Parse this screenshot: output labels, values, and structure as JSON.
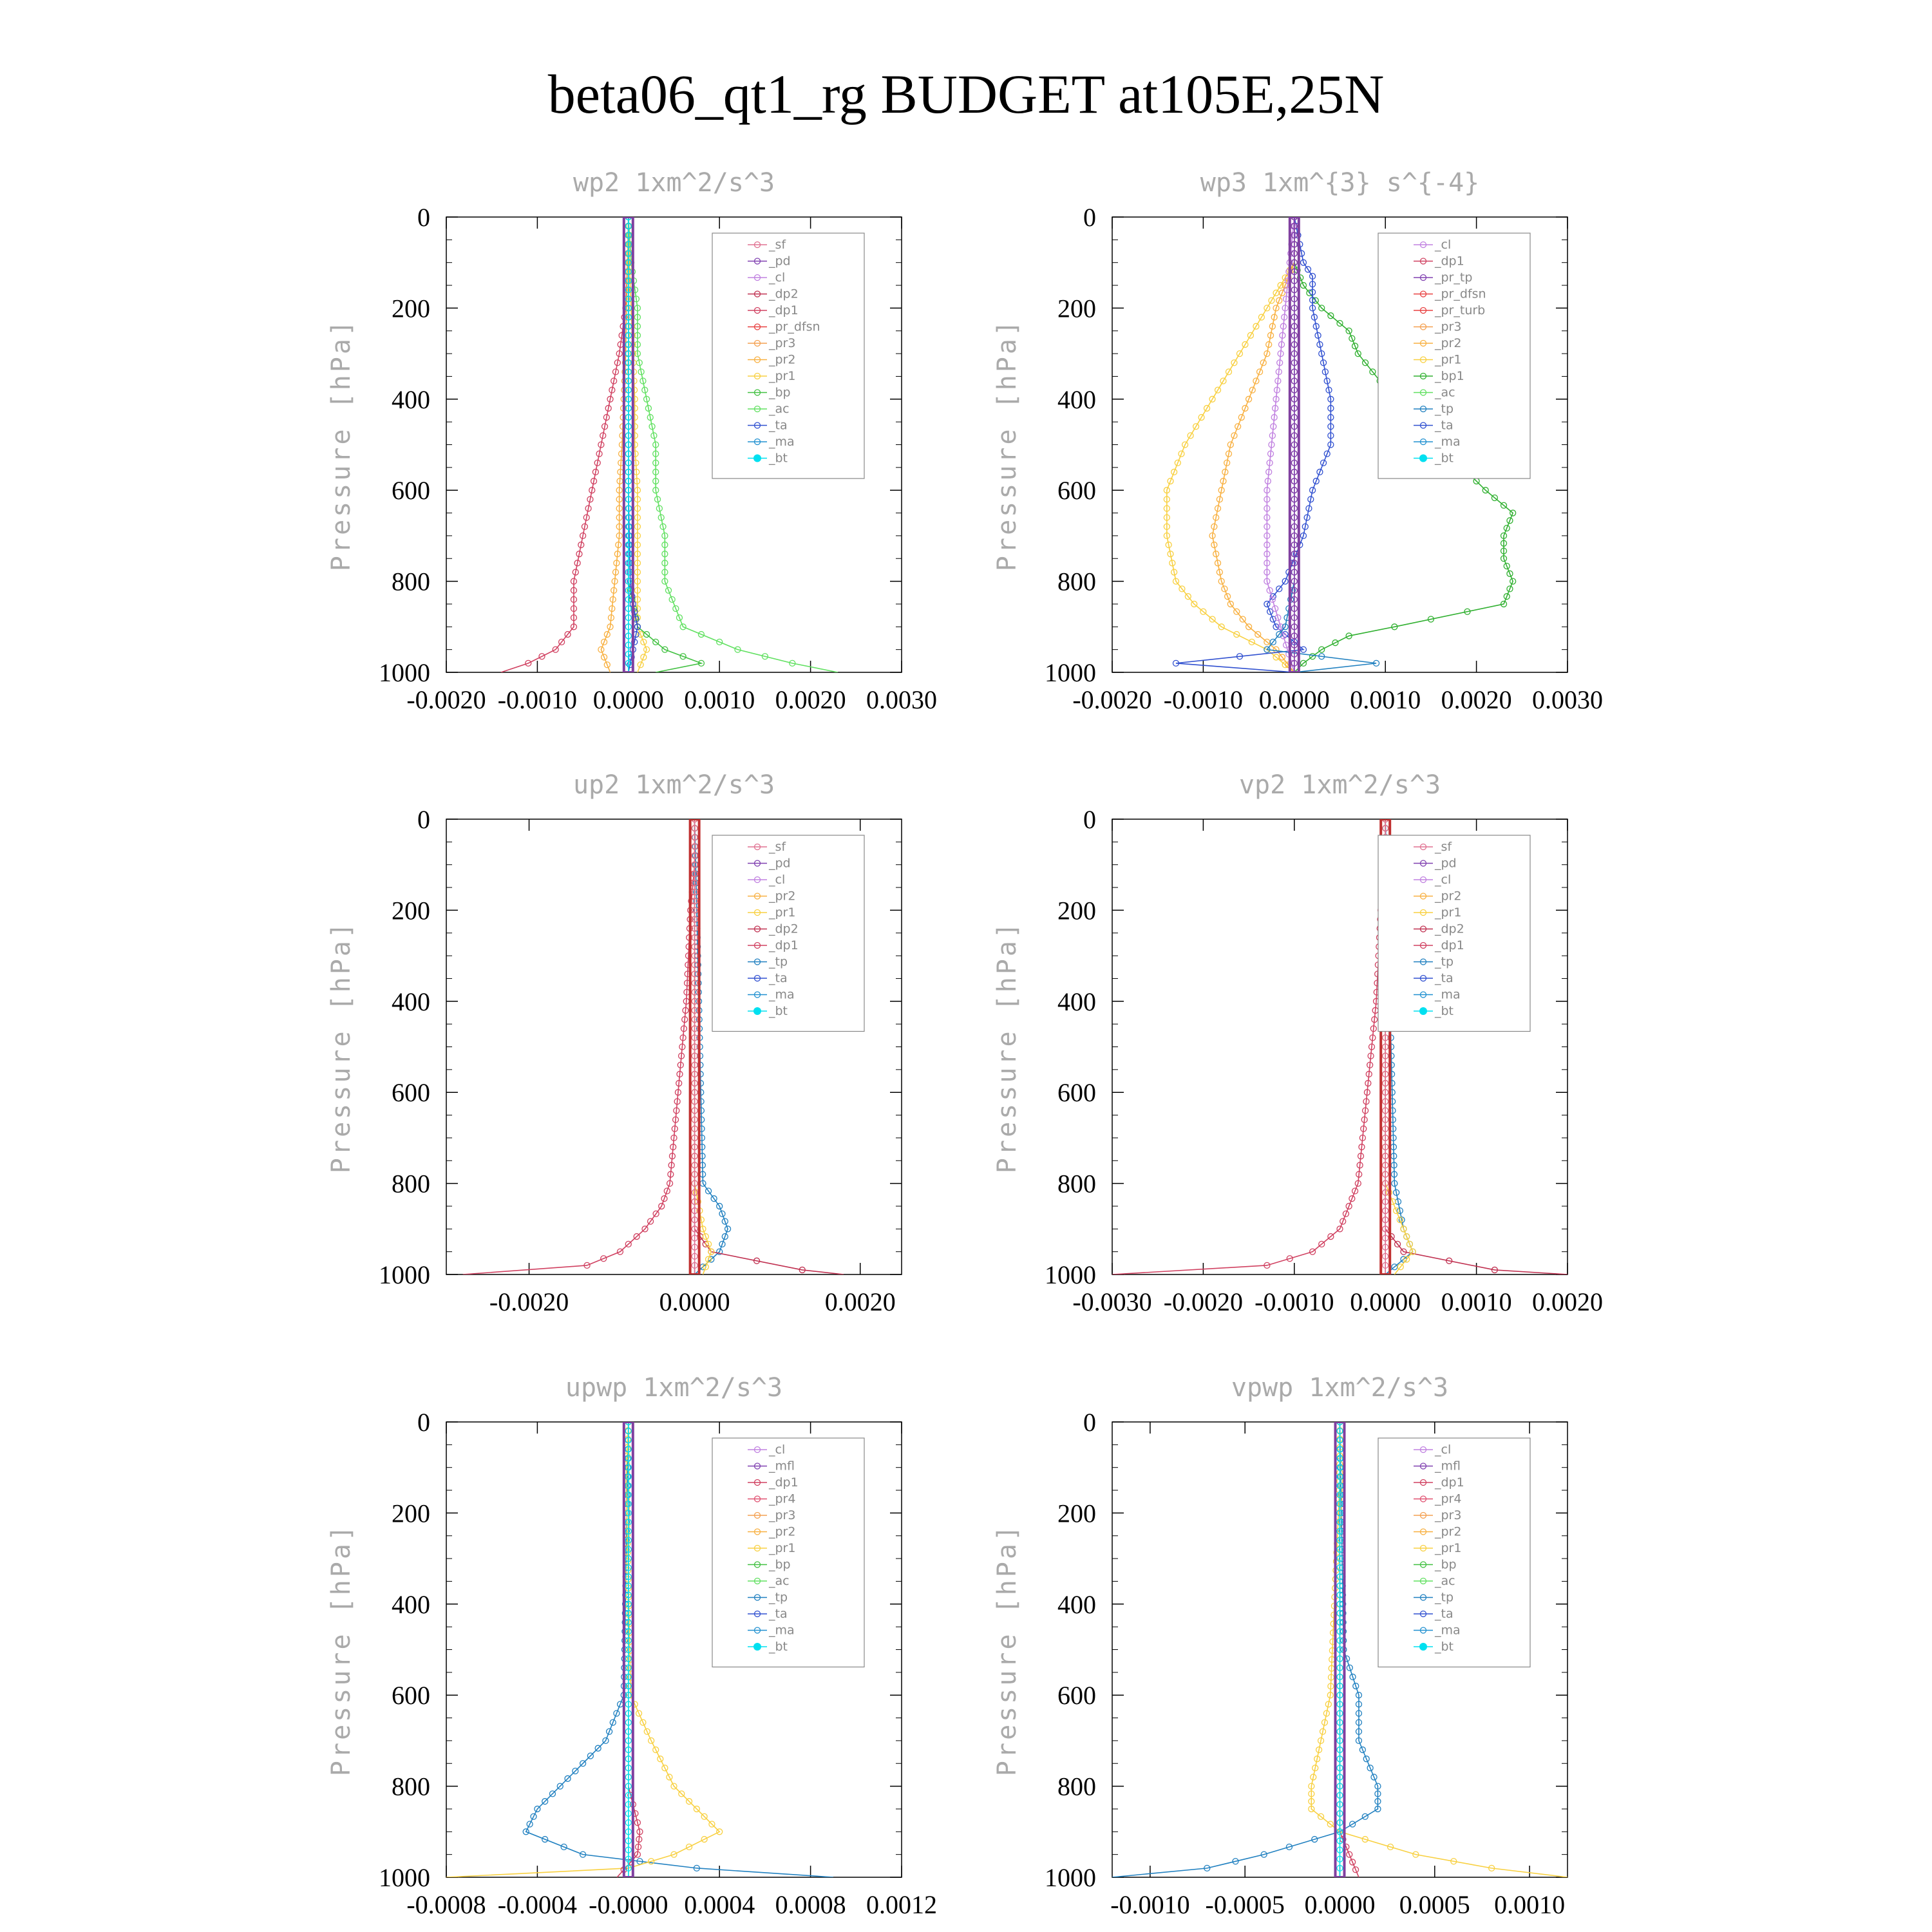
{
  "title": "beta06_qt1_rg  BUDGET at105E,25N",
  "colors": {
    "_sf": "#e07090",
    "_pd": "#8040b0",
    "_cl": "#c080e0",
    "_dp2": "#c03050",
    "_dp1": "#d04060",
    "_pr_dfsn": "#e84040",
    "_pr3": "#f4a050",
    "_pr2": "#f8b040",
    "_pr1": "#f8d040",
    "_bp": "#40c040",
    "_ac": "#60e060",
    "_ta": "#3050d0",
    "_ma": "#2090d0",
    "_bt": "#00e0f0",
    "_tp": "#2080c0",
    "_bp1": "#30b030",
    "_pr_tp": "#8040b0",
    "_pr_turb": "#e84040",
    "_mfl": "#8040b0",
    "_pr4": "#e05070"
  },
  "chart_data": [
    {
      "type": "line",
      "title": "wp2  1xm^2/s^3",
      "ylabel": "Pressure [hPa]",
      "xlim": [
        -0.002,
        0.003
      ],
      "ylim": [
        1000,
        0
      ],
      "xticks": [
        -0.002,
        -0.001,
        0.0,
        0.001,
        0.002,
        0.003
      ],
      "xtick_labels": [
        "-0.0020",
        "-0.0010",
        "0.0000",
        "0.0010",
        "0.0020",
        "0.0030"
      ],
      "yticks": [
        0,
        200,
        400,
        600,
        800,
        1000
      ],
      "ytick_labels": [
        "0",
        "200",
        "400",
        "600",
        "800",
        "1000"
      ],
      "legend": [
        "_sf",
        "_pd",
        "_cl",
        "_dp2",
        "_dp1",
        "_pr_dfsn",
        "_pr3",
        "_pr2",
        "_pr1",
        "_bp",
        "_ac",
        "_ta",
        "_ma",
        "_bt"
      ],
      "series": [
        {
          "name": "_dp1",
          "p": [
            0,
            100,
            200,
            300,
            400,
            500,
            600,
            700,
            800,
            900,
            950,
            980,
            1000
          ],
          "v": [
            0,
            -1e-05,
            -3e-05,
            -0.0001,
            -0.0002,
            -0.0003,
            -0.0004,
            -0.0005,
            -0.0006,
            -0.0006,
            -0.0008,
            -0.0011,
            -0.0014
          ]
        },
        {
          "name": "_ac",
          "p": [
            0,
            100,
            200,
            300,
            400,
            500,
            600,
            700,
            800,
            900,
            950,
            980,
            1000
          ],
          "v": [
            0,
            3e-05,
            0.0001,
            0.0001,
            0.0002,
            0.0003,
            0.0003,
            0.0004,
            0.0004,
            0.0006,
            0.0012,
            0.0018,
            0.0023
          ]
        },
        {
          "name": "_pr2",
          "p": [
            0,
            100,
            200,
            300,
            400,
            500,
            600,
            700,
            800,
            900,
            950,
            1000
          ],
          "v": [
            0,
            -1e-05,
            -2e-05,
            -3e-05,
            -5e-05,
            -7e-05,
            -0.0001,
            -0.0001,
            -0.00015,
            -0.0002,
            -0.0003,
            -0.0002
          ]
        },
        {
          "name": "_pr1",
          "p": [
            0,
            100,
            200,
            300,
            400,
            500,
            600,
            700,
            800,
            900,
            950,
            1000
          ],
          "v": [
            0,
            1e-05,
            3e-05,
            5e-05,
            7e-05,
            7e-05,
            0.0001,
            0.0001,
            0.0001,
            0.0001,
            0.0002,
            0.0001
          ]
        },
        {
          "name": "_bp",
          "p": [
            0,
            200,
            400,
            600,
            800,
            900,
            950,
            980,
            1000
          ],
          "v": [
            0,
            0,
            0,
            0,
            0,
            0.0001,
            0.0004,
            0.0008,
            0.0003
          ]
        },
        {
          "name": "_ta",
          "p": [
            0,
            200,
            400,
            600,
            800,
            850,
            900,
            950,
            1000
          ],
          "v": [
            0,
            0,
            0,
            0,
            2e-05,
            5e-05,
            0.0001,
            5e-05,
            0
          ]
        },
        {
          "name": "_pd",
          "p": [
            0,
            200,
            400,
            600,
            800,
            1000
          ],
          "v": [
            0,
            0,
            0,
            0,
            0,
            0
          ]
        },
        {
          "name": "_bt",
          "p": [
            0,
            200,
            400,
            600,
            800,
            1000
          ],
          "v": [
            0,
            0,
            0,
            0,
            0,
            0
          ]
        }
      ]
    },
    {
      "type": "line",
      "title": "wp3  1xm^{3} s^{-4}",
      "ylabel": "Pressure [hPa]",
      "xlim": [
        -0.002,
        0.003
      ],
      "ylim": [
        1000,
        0
      ],
      "xticks": [
        -0.002,
        -0.001,
        0.0,
        0.001,
        0.002,
        0.003
      ],
      "xtick_labels": [
        "-0.0020",
        "-0.0010",
        "0.0000",
        "0.0010",
        "0.0020",
        "0.0030"
      ],
      "yticks": [
        0,
        200,
        400,
        600,
        800,
        1000
      ],
      "ytick_labels": [
        "0",
        "200",
        "400",
        "600",
        "800",
        "1000"
      ],
      "legend": [
        "_cl",
        "_dp1",
        "_pr_tp",
        "_pr_dfsn",
        "_pr_turb",
        "_pr3",
        "_pr2",
        "_pr1",
        "_bp1",
        "_ac",
        "_tp",
        "_ta",
        "_ma",
        "_bt"
      ],
      "series": [
        {
          "name": "_bp1",
          "p": [
            0,
            100,
            150,
            200,
            250,
            300,
            400,
            500,
            600,
            650,
            700,
            750,
            800,
            850,
            900,
            920,
            950,
            980,
            1000
          ],
          "v": [
            0,
            0,
            0.0001,
            0.0003,
            0.0006,
            0.0007,
            0.0011,
            0.0016,
            0.0021,
            0.0024,
            0.0023,
            0.0023,
            0.0024,
            0.0023,
            0.0011,
            0.0006,
            0.0003,
            0.0001,
            0
          ]
        },
        {
          "name": "_pr1",
          "p": [
            0,
            100,
            150,
            200,
            300,
            400,
            500,
            600,
            700,
            800,
            850,
            900,
            950,
            1000
          ],
          "v": [
            0,
            0,
            -0.00015,
            -0.0003,
            -0.0006,
            -0.0009,
            -0.0012,
            -0.0014,
            -0.0014,
            -0.0013,
            -0.0011,
            -0.0008,
            -0.0003,
            0
          ]
        },
        {
          "name": "_pr2",
          "p": [
            0,
            100,
            150,
            200,
            300,
            400,
            500,
            600,
            700,
            800,
            850,
            900,
            950,
            1000
          ],
          "v": [
            0,
            0,
            -0.0001,
            -0.0002,
            -0.0003,
            -0.0005,
            -0.0007,
            -0.0008,
            -0.0009,
            -0.0008,
            -0.0007,
            -0.0005,
            -0.0002,
            0
          ]
        },
        {
          "name": "_ta",
          "p": [
            0,
            100,
            130,
            200,
            300,
            400,
            500,
            600,
            700,
            800,
            850,
            900,
            950,
            980,
            1000
          ],
          "v": [
            0,
            0.0001,
            0.0002,
            0.0002,
            0.0003,
            0.0004,
            0.0004,
            0.0002,
            0.0001,
            -0.0001,
            -0.0003,
            -0.0002,
            0.0001,
            -0.0013,
            0
          ]
        },
        {
          "name": "_cl",
          "p": [
            0,
            200,
            400,
            600,
            800,
            1000
          ],
          "v": [
            0,
            -0.0001,
            -0.0002,
            -0.0003,
            -0.0003,
            0
          ]
        },
        {
          "name": "_tp",
          "p": [
            0,
            800,
            900,
            950,
            980,
            1000
          ],
          "v": [
            0,
            0,
            -0.0001,
            -0.0003,
            0.0009,
            0
          ]
        },
        {
          "name": "_dp1",
          "p": [
            0,
            200,
            400,
            600,
            800,
            1000
          ],
          "v": [
            0,
            0,
            0,
            0,
            0,
            0
          ]
        },
        {
          "name": "_pr_tp",
          "p": [
            0,
            200,
            400,
            600,
            800,
            1000
          ],
          "v": [
            0,
            0,
            0,
            0,
            0,
            0
          ]
        }
      ]
    },
    {
      "type": "line",
      "title": "up2  1xm^2/s^3",
      "ylabel": "Pressure [hPa]",
      "xlim": [
        -0.003,
        0.0025
      ],
      "ylim": [
        1000,
        0
      ],
      "xticks": [
        -0.002,
        0.0,
        0.002
      ],
      "xtick_labels": [
        "-0.0020",
        "0.0000",
        "0.0020"
      ],
      "yticks": [
        0,
        200,
        400,
        600,
        800,
        1000
      ],
      "ytick_labels": [
        "0",
        "200",
        "400",
        "600",
        "800",
        "1000"
      ],
      "legend": [
        "_sf",
        "_pd",
        "_cl",
        "_pr2",
        "_pr1",
        "_dp2",
        "_dp1",
        "_tp",
        "_ta",
        "_ma",
        "_bt"
      ],
      "series": [
        {
          "name": "_dp1",
          "p": [
            0,
            100,
            200,
            400,
            600,
            800,
            850,
            900,
            950,
            980,
            1000
          ],
          "v": [
            0,
            0,
            -5e-05,
            -0.0001,
            -0.0002,
            -0.0003,
            -0.0004,
            -0.0006,
            -0.0009,
            -0.0013,
            -0.0028
          ]
        },
        {
          "name": "_tp",
          "p": [
            0,
            800,
            850,
            900,
            950,
            1000
          ],
          "v": [
            0,
            0.0001,
            0.0003,
            0.0004,
            0.0003,
            0
          ]
        },
        {
          "name": "_dp2",
          "p": [
            0,
            900,
            950,
            990,
            1000
          ],
          "v": [
            0,
            0,
            0.0002,
            0.0013,
            0.0018
          ]
        },
        {
          "name": "_pr1",
          "p": [
            0,
            800,
            900,
            950,
            1000
          ],
          "v": [
            0,
            0,
            0.0001,
            0.0002,
            0.0001
          ]
        },
        {
          "name": "_sf",
          "p": [
            0,
            200,
            400,
            600,
            800,
            1000
          ],
          "v": [
            0,
            0,
            0,
            0,
            0,
            0
          ]
        }
      ]
    },
    {
      "type": "line",
      "title": "vp2  1xm^2/s^3",
      "ylabel": "Pressure [hPa]",
      "xlim": [
        -0.003,
        0.002
      ],
      "ylim": [
        1000,
        0
      ],
      "xticks": [
        -0.003,
        -0.002,
        -0.001,
        0.0,
        0.001,
        0.002
      ],
      "xtick_labels": [
        "-0.0030",
        "-0.0020",
        "-0.0010",
        "0.0000",
        "0.0010",
        "0.0020"
      ],
      "yticks": [
        0,
        200,
        400,
        600,
        800,
        1000
      ],
      "ytick_labels": [
        "0",
        "200",
        "400",
        "600",
        "800",
        "1000"
      ],
      "legend": [
        "_sf",
        "_pd",
        "_cl",
        "_pr2",
        "_pr1",
        "_dp2",
        "_dp1",
        "_tp",
        "_ta",
        "_ma",
        "_bt"
      ],
      "series": [
        {
          "name": "_dp1",
          "p": [
            0,
            100,
            200,
            400,
            600,
            800,
            850,
            900,
            950,
            980,
            1000
          ],
          "v": [
            0,
            0,
            -5e-05,
            -0.0001,
            -0.0002,
            -0.0003,
            -0.0004,
            -0.0005,
            -0.0008,
            -0.0013,
            -0.003
          ]
        },
        {
          "name": "_tp",
          "p": [
            0,
            800,
            900,
            950,
            1000
          ],
          "v": [
            0,
            0.0001,
            0.0002,
            0.0003,
            0
          ]
        },
        {
          "name": "_dp2",
          "p": [
            0,
            900,
            950,
            990,
            1000
          ],
          "v": [
            0,
            0,
            0.0002,
            0.0012,
            0.002
          ]
        },
        {
          "name": "_pr1",
          "p": [
            0,
            800,
            900,
            950,
            1000
          ],
          "v": [
            0,
            0,
            0.0002,
            0.0003,
            0.0001
          ]
        },
        {
          "name": "_sf",
          "p": [
            0,
            200,
            400,
            600,
            800,
            1000
          ],
          "v": [
            0,
            0,
            0,
            0,
            0,
            0
          ]
        }
      ]
    },
    {
      "type": "line",
      "title": "upwp  1xm^2/s^3",
      "ylabel": "Pressure [hPa]",
      "xlim": [
        -0.0008,
        0.0012
      ],
      "ylim": [
        1000,
        0
      ],
      "xticks": [
        -0.0008,
        -0.0004,
        0.0,
        0.0004,
        0.0008,
        0.0012
      ],
      "xtick_labels": [
        "-0.0008",
        "-0.0004",
        "-0.0000",
        "0.0004",
        "0.0008",
        "0.0012"
      ],
      "yticks": [
        0,
        200,
        400,
        600,
        800,
        1000
      ],
      "ytick_labels": [
        "0",
        "200",
        "400",
        "600",
        "800",
        "1000"
      ],
      "legend": [
        "_cl",
        "_mfl",
        "_dp1",
        "_pr4",
        "_pr3",
        "_pr2",
        "_pr1",
        "_bp",
        "_ac",
        "_tp",
        "_ta",
        "_ma",
        "_bt"
      ],
      "series": [
        {
          "name": "_tp",
          "p": [
            0,
            600,
            700,
            750,
            800,
            850,
            900,
            950,
            980,
            1000
          ],
          "v": [
            0,
            -2e-05,
            -0.0001,
            -0.0002,
            -0.0003,
            -0.0004,
            -0.00045,
            -0.0002,
            0.0003,
            0.0009
          ]
        },
        {
          "name": "_pr1",
          "p": [
            0,
            130,
            600,
            700,
            800,
            850,
            900,
            950,
            980,
            1000
          ],
          "v": [
            0,
            -1e-05,
            1e-05,
            0.0001,
            0.0002,
            0.0003,
            0.0004,
            0.0002,
            0,
            -0.0008
          ]
        },
        {
          "name": "_dp1",
          "p": [
            0,
            800,
            900,
            950,
            1000
          ],
          "v": [
            0,
            0,
            5e-05,
            4e-05,
            -5e-05
          ]
        },
        {
          "name": "_bt",
          "p": [
            0,
            200,
            400,
            600,
            800,
            1000
          ],
          "v": [
            0,
            0,
            0,
            0,
            0,
            0
          ]
        }
      ]
    },
    {
      "type": "line",
      "title": "vpwp  1xm^2/s^3",
      "ylabel": "Pressure [hPa]",
      "xlim": [
        -0.0012,
        0.0012
      ],
      "ylim": [
        1000,
        0
      ],
      "xticks": [
        -0.001,
        -0.0005,
        0.0,
        0.0005,
        0.001
      ],
      "xtick_labels": [
        "-0.0010",
        "-0.0005",
        "0.0000",
        "0.0005",
        "0.0010"
      ],
      "yticks": [
        0,
        200,
        400,
        600,
        800,
        1000
      ],
      "ytick_labels": [
        "0",
        "200",
        "400",
        "600",
        "800",
        "1000"
      ],
      "legend": [
        "_cl",
        "_mfl",
        "_dp1",
        "_pr4",
        "_pr3",
        "_pr2",
        "_pr1",
        "_bp",
        "_ac",
        "_tp",
        "_ta",
        "_ma",
        "_bt"
      ],
      "series": [
        {
          "name": "_tp",
          "p": [
            0,
            500,
            600,
            700,
            800,
            850,
            900,
            950,
            980,
            1000
          ],
          "v": [
            0,
            2e-05,
            0.0001,
            0.0001,
            0.0002,
            0.0002,
            0,
            -0.0004,
            -0.0007,
            -0.0012
          ]
        },
        {
          "name": "_pr1",
          "p": [
            0,
            130,
            600,
            700,
            800,
            850,
            900,
            950,
            980,
            1000
          ],
          "v": [
            0,
            0,
            -5e-05,
            -0.0001,
            -0.00015,
            -0.00015,
            0,
            0.0004,
            0.0008,
            0.0012
          ]
        },
        {
          "name": "_dp1",
          "p": [
            0,
            900,
            950,
            1000
          ],
          "v": [
            0,
            0,
            5e-05,
            0.0001
          ]
        },
        {
          "name": "_bt",
          "p": [
            0,
            200,
            400,
            600,
            800,
            1000
          ],
          "v": [
            0,
            0,
            0,
            0,
            0,
            0
          ]
        }
      ]
    }
  ]
}
